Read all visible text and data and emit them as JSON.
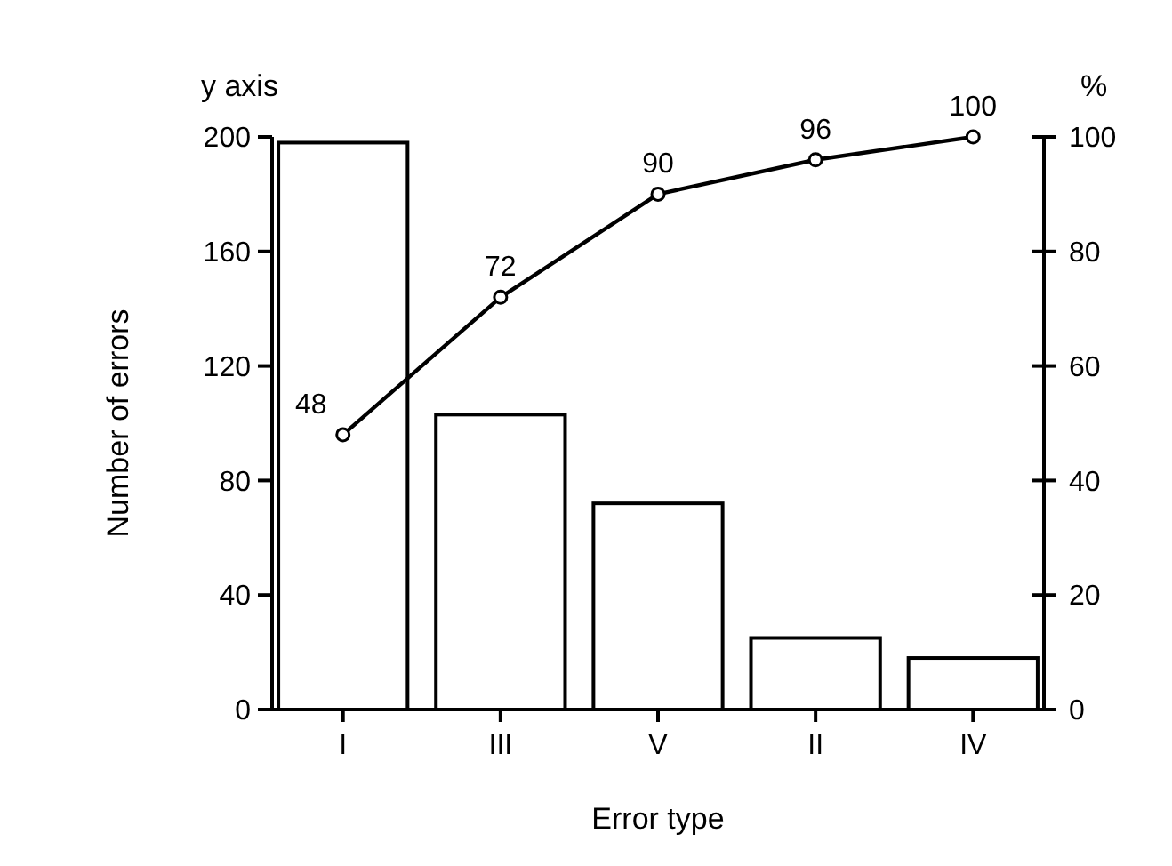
{
  "chart_data": {
    "type": "bar",
    "categories": [
      "I",
      "III",
      "V",
      "II",
      "IV"
    ],
    "series": [
      {
        "color": "#ffffff",
        "values": [
          198,
          103,
          72,
          25,
          18
        ]
      },
      {
        "type": "line",
        "axis": "y2",
        "color": "#000000",
        "values": [
          48,
          72,
          90,
          96,
          100
        ],
        "value_labels": [
          "48",
          "72",
          "90",
          "96",
          "100"
        ]
      }
    ],
    "xlabel": "Error type",
    "ylabel": "Number of errors",
    "y2label": "%",
    "annotations": [
      "y axis"
    ],
    "ylim": [
      0,
      200
    ],
    "yticks": [
      0,
      40,
      80,
      120,
      160,
      200
    ],
    "y2lim": [
      0,
      100
    ],
    "y2ticks": [
      0,
      20,
      40,
      60,
      80,
      100
    ],
    "grid": false,
    "marker": "circle",
    "line_style": "solid"
  }
}
